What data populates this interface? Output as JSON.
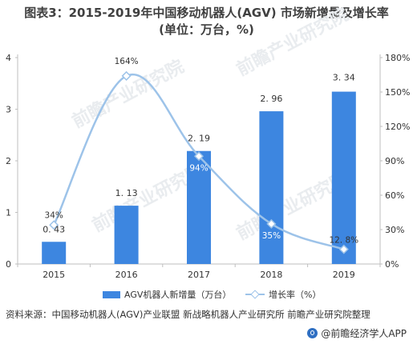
{
  "title": {
    "line1": "图表3：2015-2019年中国移动机器人(AGV) 市场新增量及增长率",
    "line2": "(单位：万台，%)"
  },
  "legend": {
    "bar_label": "AGV机器人新增量（万台）",
    "line_label": "增长率（%）"
  },
  "source": "资料来源：中国移动机器人(AGV)产业联盟 新战略机器人产业研究所 前瞻产业研究院整理",
  "brand": "@前瞻经济学人APP",
  "watermark": "前瞻产业研究院",
  "colors": {
    "bar": "#3d86e0",
    "line": "#9dc3e9",
    "axis": "#bfbfbf",
    "text": "#333333"
  },
  "chart_data": {
    "type": "bar",
    "categories": [
      "2015",
      "2016",
      "2017",
      "2018",
      "2019"
    ],
    "series": [
      {
        "name": "AGV机器人新增量（万台）",
        "type": "bar",
        "axis": "left",
        "values": [
          0.43,
          1.13,
          2.19,
          2.96,
          3.34
        ],
        "labels": [
          "0. 43",
          "1. 13",
          "2. 19",
          "2. 96",
          "3. 34"
        ]
      },
      {
        "name": "增长率（%）",
        "type": "line",
        "axis": "right",
        "values": [
          34,
          164,
          94,
          35,
          12.8
        ],
        "labels": [
          "34%",
          "164%",
          "94%",
          "35%",
          "12. 8%"
        ]
      }
    ],
    "y_left": {
      "min": 0,
      "max": 4,
      "ticks": [
        0,
        1,
        2,
        3,
        4
      ],
      "tick_labels": [
        "0",
        "1",
        "2",
        "3",
        "4"
      ]
    },
    "y_right": {
      "min": 0,
      "max": 180,
      "ticks": [
        0,
        30,
        60,
        90,
        120,
        150,
        180
      ],
      "tick_labels": [
        "0%",
        "30%",
        "60%",
        "90%",
        "120%",
        "150%",
        "180%"
      ]
    },
    "grid": false,
    "legend_position": "bottom"
  }
}
